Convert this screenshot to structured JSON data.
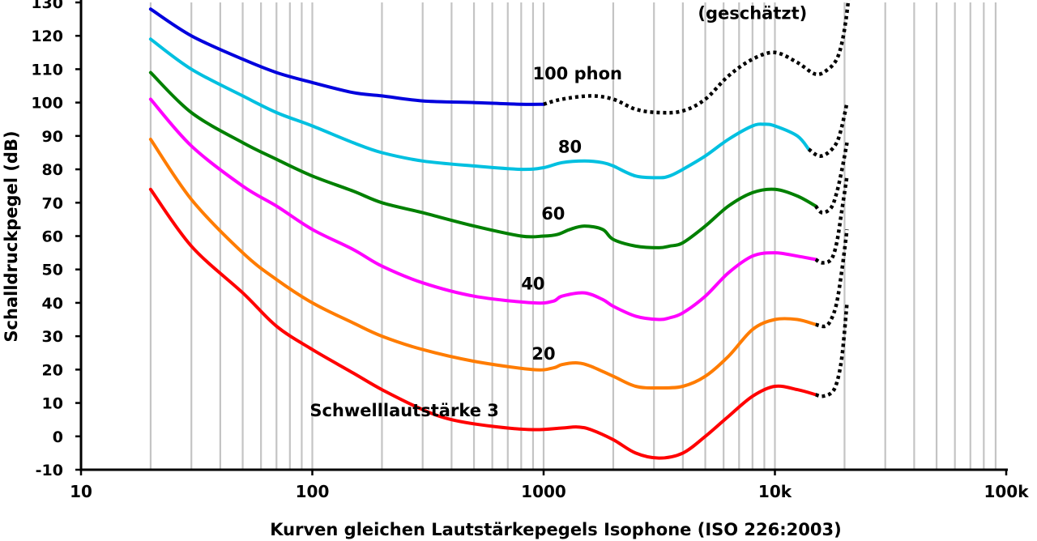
{
  "chart_data": {
    "type": "line",
    "title": "",
    "xlabel": "Kurven gleichen Lautstärkepegels Isophone (ISO 226:2003)",
    "ylabel": "Schalldruckpegel (dB)",
    "xscale": "log",
    "xlim": [
      10,
      100000
    ],
    "ylim": [
      -10,
      130
    ],
    "x_ticks": [
      {
        "value": 10,
        "label": "10"
      },
      {
        "value": 100,
        "label": "100"
      },
      {
        "value": 1000,
        "label": "1000"
      },
      {
        "value": 10000,
        "label": "10k"
      },
      {
        "value": 100000,
        "label": "100k"
      }
    ],
    "y_ticks": [
      {
        "value": -10,
        "label": "-10"
      },
      {
        "value": 0,
        "label": "0"
      },
      {
        "value": 10,
        "label": "10"
      },
      {
        "value": 20,
        "label": "20"
      },
      {
        "value": 30,
        "label": "30"
      },
      {
        "value": 40,
        "label": "40"
      },
      {
        "value": 50,
        "label": "50"
      },
      {
        "value": 60,
        "label": "60"
      },
      {
        "value": 70,
        "label": "70"
      },
      {
        "value": 80,
        "label": "80"
      },
      {
        "value": 90,
        "label": "90"
      },
      {
        "value": 100,
        "label": "100"
      },
      {
        "value": 110,
        "label": "110"
      },
      {
        "value": 120,
        "label": "120"
      },
      {
        "value": 130,
        "label": "130"
      }
    ],
    "grid": "vertical log gridlines",
    "series": [
      {
        "name": "Schwelllautstärke 3",
        "color": "#ff0000",
        "solid": [
          [
            20,
            74
          ],
          [
            30,
            57
          ],
          [
            50,
            43
          ],
          [
            70,
            33
          ],
          [
            100,
            26
          ],
          [
            150,
            19
          ],
          [
            200,
            14
          ],
          [
            300,
            8
          ],
          [
            400,
            5
          ],
          [
            600,
            3
          ],
          [
            900,
            2
          ],
          [
            1200,
            2.5
          ],
          [
            1400,
            2.8
          ],
          [
            1600,
            2
          ],
          [
            2000,
            -1
          ],
          [
            2500,
            -5
          ],
          [
            3150,
            -6.5
          ],
          [
            4000,
            -5
          ],
          [
            5000,
            0
          ],
          [
            6300,
            6
          ],
          [
            8000,
            12
          ],
          [
            10000,
            15
          ],
          [
            12500,
            14
          ],
          [
            15000,
            12.5
          ]
        ],
        "dashed": [
          [
            15000,
            12.5
          ],
          [
            16000,
            12
          ],
          [
            17500,
            13
          ],
          [
            18500,
            16
          ],
          [
            19500,
            24
          ],
          [
            20500,
            40
          ]
        ]
      },
      {
        "name": "20",
        "color": "#ff7c00",
        "solid": [
          [
            20,
            89
          ],
          [
            30,
            71
          ],
          [
            50,
            55
          ],
          [
            70,
            47
          ],
          [
            100,
            40
          ],
          [
            150,
            34
          ],
          [
            200,
            30
          ],
          [
            300,
            26
          ],
          [
            500,
            22.5
          ],
          [
            900,
            20
          ],
          [
            1100,
            20.5
          ],
          [
            1200,
            21.5
          ],
          [
            1400,
            22
          ],
          [
            1600,
            21
          ],
          [
            2000,
            18
          ],
          [
            2500,
            15
          ],
          [
            3150,
            14.5
          ],
          [
            4000,
            15
          ],
          [
            5000,
            18
          ],
          [
            6300,
            24
          ],
          [
            8000,
            32
          ],
          [
            10000,
            35
          ],
          [
            12500,
            35
          ],
          [
            15000,
            33.5
          ]
        ],
        "dashed": [
          [
            15000,
            33.5
          ],
          [
            16500,
            33
          ],
          [
            17500,
            35
          ],
          [
            18500,
            40
          ],
          [
            19500,
            50
          ],
          [
            20500,
            62
          ]
        ]
      },
      {
        "name": "40",
        "color": "#ff00ff",
        "solid": [
          [
            20,
            101
          ],
          [
            30,
            87
          ],
          [
            50,
            75
          ],
          [
            70,
            69
          ],
          [
            100,
            62
          ],
          [
            150,
            56
          ],
          [
            200,
            51
          ],
          [
            300,
            46
          ],
          [
            500,
            42
          ],
          [
            900,
            40
          ],
          [
            1100,
            40.5
          ],
          [
            1200,
            42
          ],
          [
            1500,
            43
          ],
          [
            1800,
            41
          ],
          [
            2000,
            39
          ],
          [
            2500,
            36
          ],
          [
            3150,
            35
          ],
          [
            3500,
            35.5
          ],
          [
            4000,
            37
          ],
          [
            5000,
            42
          ],
          [
            6300,
            49
          ],
          [
            8000,
            54
          ],
          [
            10000,
            55
          ],
          [
            12500,
            54
          ],
          [
            15000,
            53
          ]
        ],
        "dashed": [
          [
            15000,
            53
          ],
          [
            16000,
            52
          ],
          [
            17500,
            53
          ],
          [
            18500,
            58
          ],
          [
            19500,
            68
          ],
          [
            20500,
            78
          ]
        ]
      },
      {
        "name": "60",
        "color": "#008000",
        "solid": [
          [
            20,
            109
          ],
          [
            30,
            97
          ],
          [
            50,
            88
          ],
          [
            70,
            83
          ],
          [
            100,
            78
          ],
          [
            150,
            73.5
          ],
          [
            200,
            70
          ],
          [
            300,
            67
          ],
          [
            500,
            63
          ],
          [
            800,
            60
          ],
          [
            1000,
            60
          ],
          [
            1150,
            60.5
          ],
          [
            1300,
            62
          ],
          [
            1500,
            63
          ],
          [
            1800,
            62
          ],
          [
            2000,
            59
          ],
          [
            2500,
            57
          ],
          [
            3150,
            56.5
          ],
          [
            3500,
            57
          ],
          [
            4000,
            58
          ],
          [
            5000,
            63
          ],
          [
            6300,
            69
          ],
          [
            8000,
            73
          ],
          [
            10000,
            74
          ],
          [
            12500,
            72
          ],
          [
            15000,
            69
          ]
        ],
        "dashed": [
          [
            15000,
            69
          ],
          [
            16000,
            67
          ],
          [
            17500,
            68.5
          ],
          [
            18500,
            73
          ],
          [
            19500,
            80
          ],
          [
            20500,
            88
          ]
        ]
      },
      {
        "name": "80",
        "color": "#00c0e0",
        "solid": [
          [
            20,
            119
          ],
          [
            30,
            110
          ],
          [
            50,
            102
          ],
          [
            70,
            97
          ],
          [
            100,
            93
          ],
          [
            150,
            88
          ],
          [
            200,
            85
          ],
          [
            300,
            82.5
          ],
          [
            500,
            81
          ],
          [
            800,
            80
          ],
          [
            1000,
            80.5
          ],
          [
            1200,
            82
          ],
          [
            1500,
            82.5
          ],
          [
            1800,
            82
          ],
          [
            2000,
            81
          ],
          [
            2500,
            78
          ],
          [
            3150,
            77.5
          ],
          [
            3500,
            78
          ],
          [
            4000,
            80
          ],
          [
            5000,
            84
          ],
          [
            6300,
            89
          ],
          [
            8000,
            93
          ],
          [
            9000,
            93.5
          ],
          [
            10000,
            93
          ],
          [
            12500,
            90
          ],
          [
            14000,
            86
          ]
        ],
        "dashed": [
          [
            14000,
            86
          ],
          [
            15500,
            84
          ],
          [
            17000,
            85
          ],
          [
            18500,
            88
          ],
          [
            19500,
            93
          ],
          [
            20500,
            100
          ]
        ]
      },
      {
        "name": "100 phon",
        "color": "#0000dd",
        "solid": [
          [
            20,
            128
          ],
          [
            30,
            120
          ],
          [
            50,
            113
          ],
          [
            70,
            109
          ],
          [
            100,
            106
          ],
          [
            150,
            103
          ],
          [
            200,
            102
          ],
          [
            300,
            100.5
          ],
          [
            500,
            100
          ],
          [
            800,
            99.5
          ],
          [
            1000,
            99.5
          ]
        ],
        "dashed": [
          [
            1000,
            99.5
          ],
          [
            1200,
            101
          ],
          [
            1600,
            102
          ],
          [
            2000,
            101
          ],
          [
            2500,
            98
          ],
          [
            3150,
            97
          ],
          [
            4000,
            97.5
          ],
          [
            5000,
            101
          ],
          [
            6300,
            108
          ],
          [
            8000,
            113
          ],
          [
            10000,
            115
          ],
          [
            12500,
            112
          ],
          [
            15000,
            108.5
          ],
          [
            17000,
            110
          ],
          [
            18500,
            113
          ],
          [
            19500,
            118
          ],
          [
            20300,
            125
          ],
          [
            20800,
            131
          ]
        ]
      }
    ],
    "annotations": [
      {
        "text": "100 phon",
        "x": 1400,
        "y": 107
      },
      {
        "text": "80",
        "x": 1300,
        "y": 85
      },
      {
        "text": "60",
        "x": 1100,
        "y": 65
      },
      {
        "text": "40",
        "x": 900,
        "y": 44
      },
      {
        "text": "20",
        "x": 1000,
        "y": 23
      },
      {
        "text": "Schwelllautstärke 3",
        "x": 250,
        "y": 6
      },
      {
        "text": "(geschätzt)",
        "x": 8000,
        "y": 125
      }
    ]
  }
}
